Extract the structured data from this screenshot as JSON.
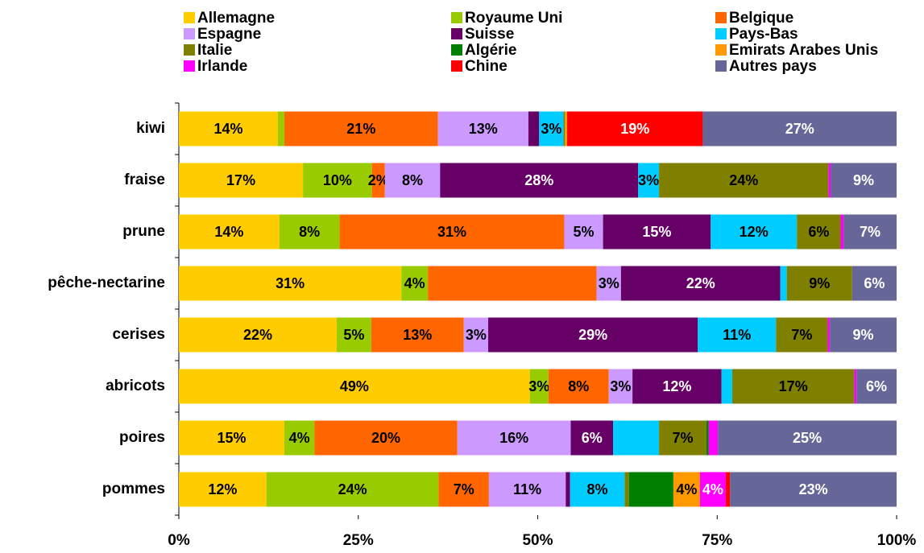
{
  "chart_data": {
    "type": "stacked_bar_horizontal",
    "categories": [
      "kiwi",
      "fraise",
      "prune",
      "pêche-nectarine",
      "cerises",
      "abricots",
      "poires",
      "pommes"
    ],
    "series": [
      {
        "name": "Allemagne",
        "color": "#ffcc00",
        "values": [
          13.8,
          17.3,
          14.0,
          31.0,
          22.0,
          48.9,
          14.7,
          12.2
        ],
        "value_labels": [
          "14%",
          "17%",
          "14%",
          "31%",
          "22%",
          "49%",
          "15%",
          "12%"
        ]
      },
      {
        "name": "Royaume Uni",
        "color": "#99cc00",
        "values": [
          0.9,
          9.6,
          8.4,
          3.7,
          4.8,
          2.6,
          4.2,
          24.0
        ],
        "value_labels": [
          null,
          "10%",
          "8%",
          "4%",
          "5%",
          "3%",
          "4%",
          "24%"
        ]
      },
      {
        "name": "Belgique",
        "color": "#ff6600",
        "values": [
          21.4,
          1.8,
          31.3,
          23.5,
          12.9,
          8.4,
          19.9,
          7.0
        ],
        "value_labels": [
          "21%",
          "2%",
          "31%",
          null,
          "13%",
          "8%",
          "20%",
          "7%"
        ]
      },
      {
        "name": "Espagne",
        "color": "#cc99ff",
        "values": [
          12.6,
          7.7,
          5.4,
          3.4,
          3.4,
          3.3,
          15.8,
          10.7
        ],
        "value_labels": [
          "13%",
          "8%",
          "5%",
          "3%",
          "3%",
          "3%",
          "16%",
          "11%"
        ]
      },
      {
        "name": "Suisse",
        "color": "#660066",
        "values": [
          1.5,
          27.6,
          15.0,
          22.2,
          29.2,
          12.4,
          5.9,
          0.6
        ],
        "value_labels": [
          null,
          "28%",
          "15%",
          "22%",
          "29%",
          "12%",
          "6%",
          null
        ]
      },
      {
        "name": "Pays-Bas",
        "color": "#00ccff",
        "values": [
          3.4,
          2.9,
          12.0,
          0.9,
          10.9,
          1.5,
          6.4,
          7.6
        ],
        "value_labels": [
          "3%",
          "3%",
          "12%",
          null,
          "11%",
          null,
          null,
          "8%"
        ]
      },
      {
        "name": "Italie",
        "color": "#808000",
        "values": [
          0.2,
          23.6,
          6.1,
          9.1,
          7.2,
          17.0,
          6.6,
          0.6
        ],
        "value_labels": [
          null,
          "24%",
          "6%",
          "9%",
          "7%",
          "17%",
          "7%",
          null
        ]
      },
      {
        "name": "Algérie",
        "color": "#008000",
        "values": [
          0,
          0,
          0,
          0,
          0,
          0,
          0.3,
          6.2
        ],
        "value_labels": [
          null,
          null,
          null,
          null,
          null,
          null,
          null,
          null
        ]
      },
      {
        "name": "Emirats Arabes Unis",
        "color": "#ff9900",
        "values": [
          0.3,
          0,
          0,
          0,
          0,
          0,
          0,
          3.7
        ],
        "value_labels": [
          null,
          null,
          null,
          null,
          null,
          null,
          null,
          "4%"
        ]
      },
      {
        "name": "Irlande",
        "color": "#ff00ff",
        "values": [
          0,
          0.3,
          0.4,
          0,
          0.3,
          0.3,
          1.3,
          3.6
        ],
        "value_labels": [
          null,
          null,
          null,
          null,
          null,
          null,
          null,
          "4%"
        ]
      },
      {
        "name": "Chine",
        "color": "#ff0000",
        "values": [
          18.9,
          0,
          0,
          0,
          0,
          0,
          0,
          0.6
        ],
        "value_labels": [
          "19%",
          null,
          null,
          null,
          null,
          null,
          null,
          null
        ]
      },
      {
        "name": "Autres pays",
        "color": "#666699",
        "values": [
          27.0,
          9.2,
          7.4,
          6.2,
          9.3,
          5.6,
          24.9,
          23.2
        ],
        "value_labels": [
          "27%",
          "9%",
          "7%",
          "6%",
          "9%",
          "6%",
          "25%",
          "23%"
        ]
      }
    ],
    "xlim": [
      0,
      100
    ],
    "xticks": [
      {
        "value": 0,
        "label": "0%"
      },
      {
        "value": 25,
        "label": "25%"
      },
      {
        "value": 50,
        "label": "50%"
      },
      {
        "value": 75,
        "label": "75%"
      },
      {
        "value": 100,
        "label": "100%"
      }
    ],
    "legend": "top"
  }
}
